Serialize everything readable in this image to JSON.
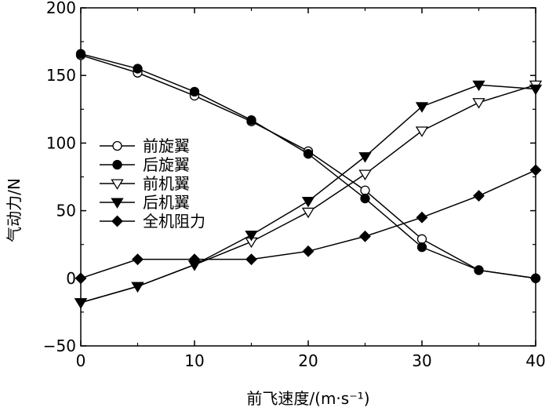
{
  "chart_data": {
    "type": "line",
    "title": "",
    "xlabel": "前飞速度/(m·s⁻¹)",
    "ylabel": "气动力/N",
    "xlim": [
      0,
      40
    ],
    "ylim": [
      -50,
      200
    ],
    "x_ticks": [
      0,
      10,
      20,
      30,
      40
    ],
    "y_ticks": [
      -50,
      0,
      50,
      100,
      150,
      200
    ],
    "legend_position": "left",
    "grid": false,
    "series": [
      {
        "name": "前旋翼",
        "marker": "open-circle",
        "x": [
          0,
          5,
          10,
          15,
          20,
          25,
          30,
          35,
          40
        ],
        "y": [
          165,
          152,
          135,
          116,
          94,
          65,
          29,
          6,
          0
        ]
      },
      {
        "name": "后旋翼",
        "marker": "filled-circle",
        "x": [
          0,
          5,
          10,
          15,
          20,
          25,
          30,
          35,
          40
        ],
        "y": [
          166,
          155,
          138,
          117,
          92,
          59,
          23,
          6,
          0
        ]
      },
      {
        "name": "前机翼",
        "marker": "open-triangle-down",
        "x": [
          0,
          5,
          10,
          15,
          20,
          25,
          30,
          35,
          40
        ],
        "y": [
          -18,
          -6,
          10,
          27,
          49,
          77,
          109,
          130,
          143
        ]
      },
      {
        "name": "后机翼",
        "marker": "filled-triangle-down",
        "x": [
          0,
          5,
          10,
          15,
          20,
          25,
          30,
          35,
          40
        ],
        "y": [
          -18,
          -6,
          10,
          32,
          57,
          90,
          127,
          143,
          140
        ]
      },
      {
        "name": "全机阻力",
        "marker": "filled-diamond",
        "x": [
          0,
          5,
          10,
          15,
          20,
          25,
          30,
          35,
          40
        ],
        "y": [
          0,
          14,
          14,
          14,
          20,
          31,
          45,
          61,
          80
        ]
      }
    ]
  }
}
